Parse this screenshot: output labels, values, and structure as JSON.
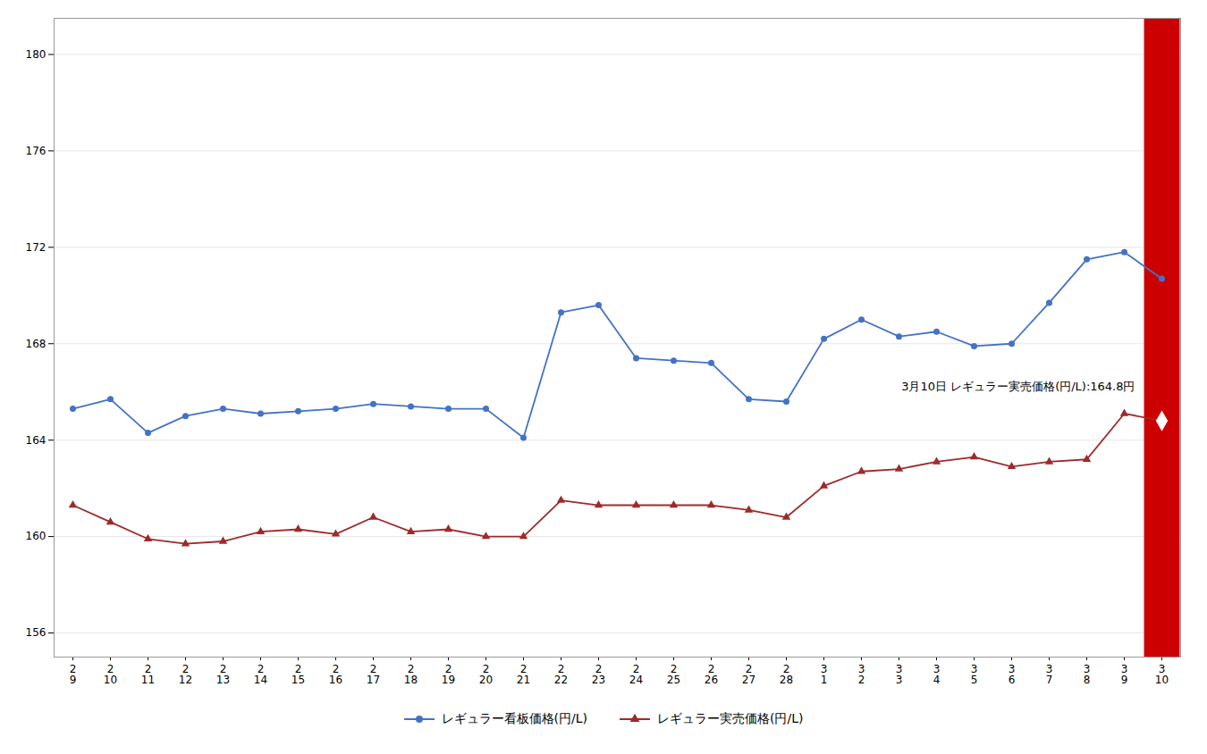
{
  "chart_data": {
    "type": "line",
    "categories": [
      "2\n9",
      "2\n10",
      "2\n11",
      "2\n12",
      "2\n13",
      "2\n14",
      "2\n15",
      "2\n16",
      "2\n17",
      "2\n18",
      "2\n19",
      "2\n20",
      "2\n21",
      "2\n22",
      "2\n23",
      "2\n24",
      "2\n25",
      "2\n26",
      "2\n27",
      "2\n28",
      "3\n1",
      "3\n2",
      "3\n3",
      "3\n4",
      "3\n5",
      "3\n6",
      "3\n7",
      "3\n8",
      "3\n9",
      "3\n10"
    ],
    "series": [
      {
        "name": "レギュラー看板価格(円/L)",
        "color": "#4472C4",
        "marker": "circle",
        "values": [
          165.3,
          165.7,
          164.3,
          165.0,
          165.3,
          165.1,
          165.2,
          165.3,
          165.5,
          165.4,
          165.3,
          165.3,
          164.1,
          169.3,
          169.6,
          167.4,
          167.3,
          167.2,
          165.7,
          165.6,
          168.2,
          169.0,
          168.3,
          168.5,
          167.9,
          168.0,
          169.7,
          171.5,
          171.8,
          170.7
        ]
      },
      {
        "name": "レギュラー実売価格(円/L)",
        "color": "#9E2A2B",
        "marker": "triangle",
        "values": [
          161.3,
          160.6,
          159.9,
          159.7,
          159.8,
          160.2,
          160.3,
          160.1,
          160.8,
          160.2,
          160.3,
          160.0,
          160.0,
          161.5,
          161.3,
          161.3,
          161.3,
          161.3,
          161.1,
          160.8,
          162.1,
          162.7,
          162.8,
          163.1,
          163.3,
          162.9,
          163.1,
          163.2,
          165.1,
          164.8
        ]
      }
    ],
    "ylim": [
      155.0,
      181.5
    ],
    "yticks": [
      156,
      160,
      164,
      168,
      172,
      176,
      180
    ],
    "grid": true,
    "legend": "bottom",
    "annotations": [
      {
        "text": "3月10日 レギュラー実売価格(円/L):164.8円",
        "x": "3\n10",
        "y": 164.8,
        "color": "#CC0000"
      }
    ]
  }
}
